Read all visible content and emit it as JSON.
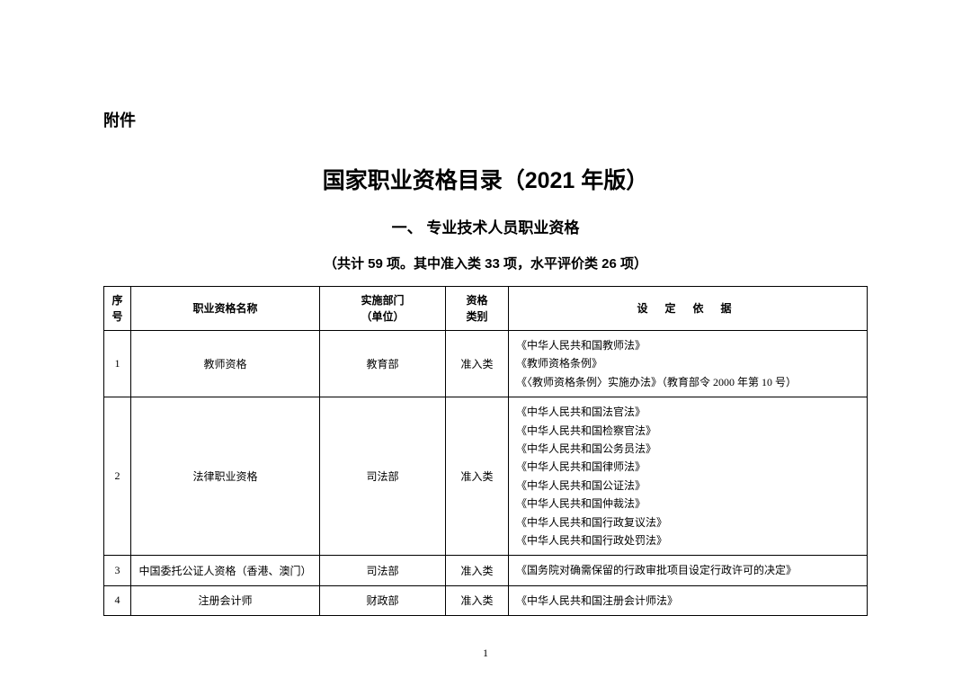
{
  "attachment_label": "附件",
  "main_title": "国家职业资格目录（2021 年版）",
  "section_title": "一、 专业技术人员职业资格",
  "summary_line": "（共计 59 项。其中准入类 33 项，水平评价类 26 项）",
  "table": {
    "headers": {
      "seq": "序号",
      "name": "职业资格名称",
      "dept": "实施部门\n（单位）",
      "category": "资格\n类别",
      "basis": "设 定 依 据"
    },
    "rows": [
      {
        "seq": "1",
        "name": "教师资格",
        "dept": "教育部",
        "category": "准入类",
        "basis": "《中华人民共和国教师法》\n《教师资格条例》\n《〈教师资格条例〉实施办法》（教育部令 2000 年第 10 号）"
      },
      {
        "seq": "2",
        "name": "法律职业资格",
        "dept": "司法部",
        "category": "准入类",
        "basis": "《中华人民共和国法官法》\n《中华人民共和国检察官法》\n《中华人民共和国公务员法》\n《中华人民共和国律师法》\n《中华人民共和国公证法》\n《中华人民共和国仲裁法》\n《中华人民共和国行政复议法》\n《中华人民共和国行政处罚法》"
      },
      {
        "seq": "3",
        "name": "中国委托公证人资格（香港、澳门）",
        "dept": "司法部",
        "category": "准入类",
        "basis": "《国务院对确需保留的行政审批项目设定行政许可的决定》"
      },
      {
        "seq": "4",
        "name": "注册会计师",
        "dept": "财政部",
        "category": "准入类",
        "basis": "《中华人民共和国注册会计师法》"
      }
    ]
  },
  "page_number": "1"
}
